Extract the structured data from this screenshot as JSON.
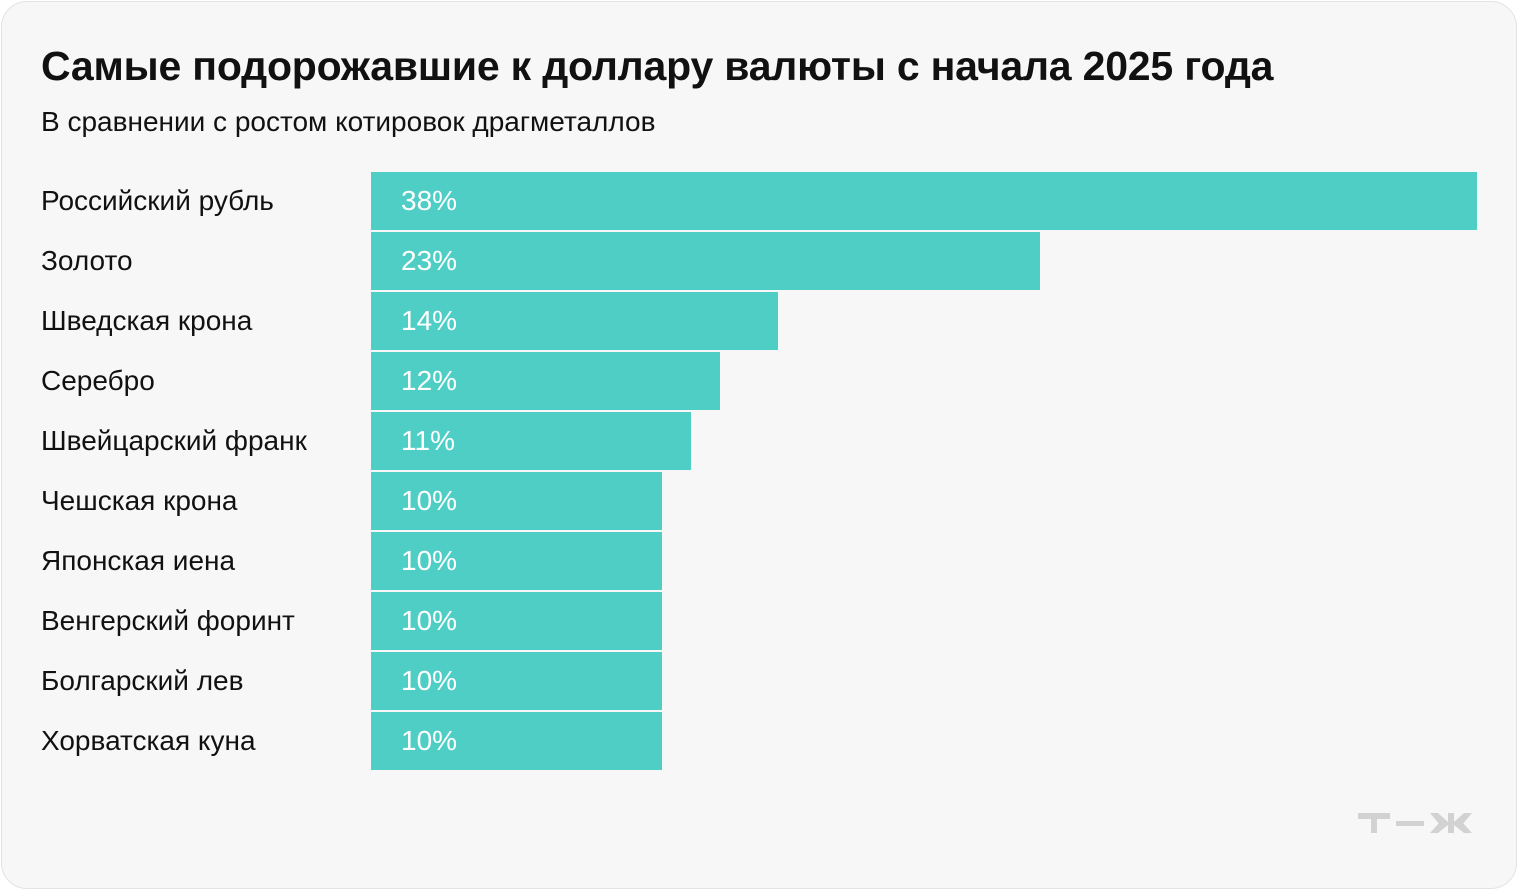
{
  "chart_data": {
    "type": "bar",
    "orientation": "horizontal",
    "title": "Самые подорожавшие к доллару валюты с начала 2025 года",
    "subtitle": "В сравнении с ростом котировок драгметаллов",
    "categories": [
      "Российский рубль",
      "Золото",
      "Шведская крона",
      "Серебро",
      "Швейцарский франк",
      "Чешская крона",
      "Японская иена",
      "Венгерский форинт",
      "Болгарский лев",
      "Хорватская куна"
    ],
    "values": [
      38,
      23,
      14,
      12,
      11,
      10,
      10,
      10,
      10,
      10
    ],
    "value_labels": [
      "38%",
      "23%",
      "14%",
      "12%",
      "11%",
      "10%",
      "10%",
      "10%",
      "10%",
      "10%"
    ],
    "unit": "%",
    "xlim": [
      0,
      38
    ],
    "grid": false,
    "legend": "none",
    "bar_color": "#4fcec5"
  },
  "logo": {
    "name": "tzh-logo-icon",
    "color": "#d2d2d2"
  }
}
